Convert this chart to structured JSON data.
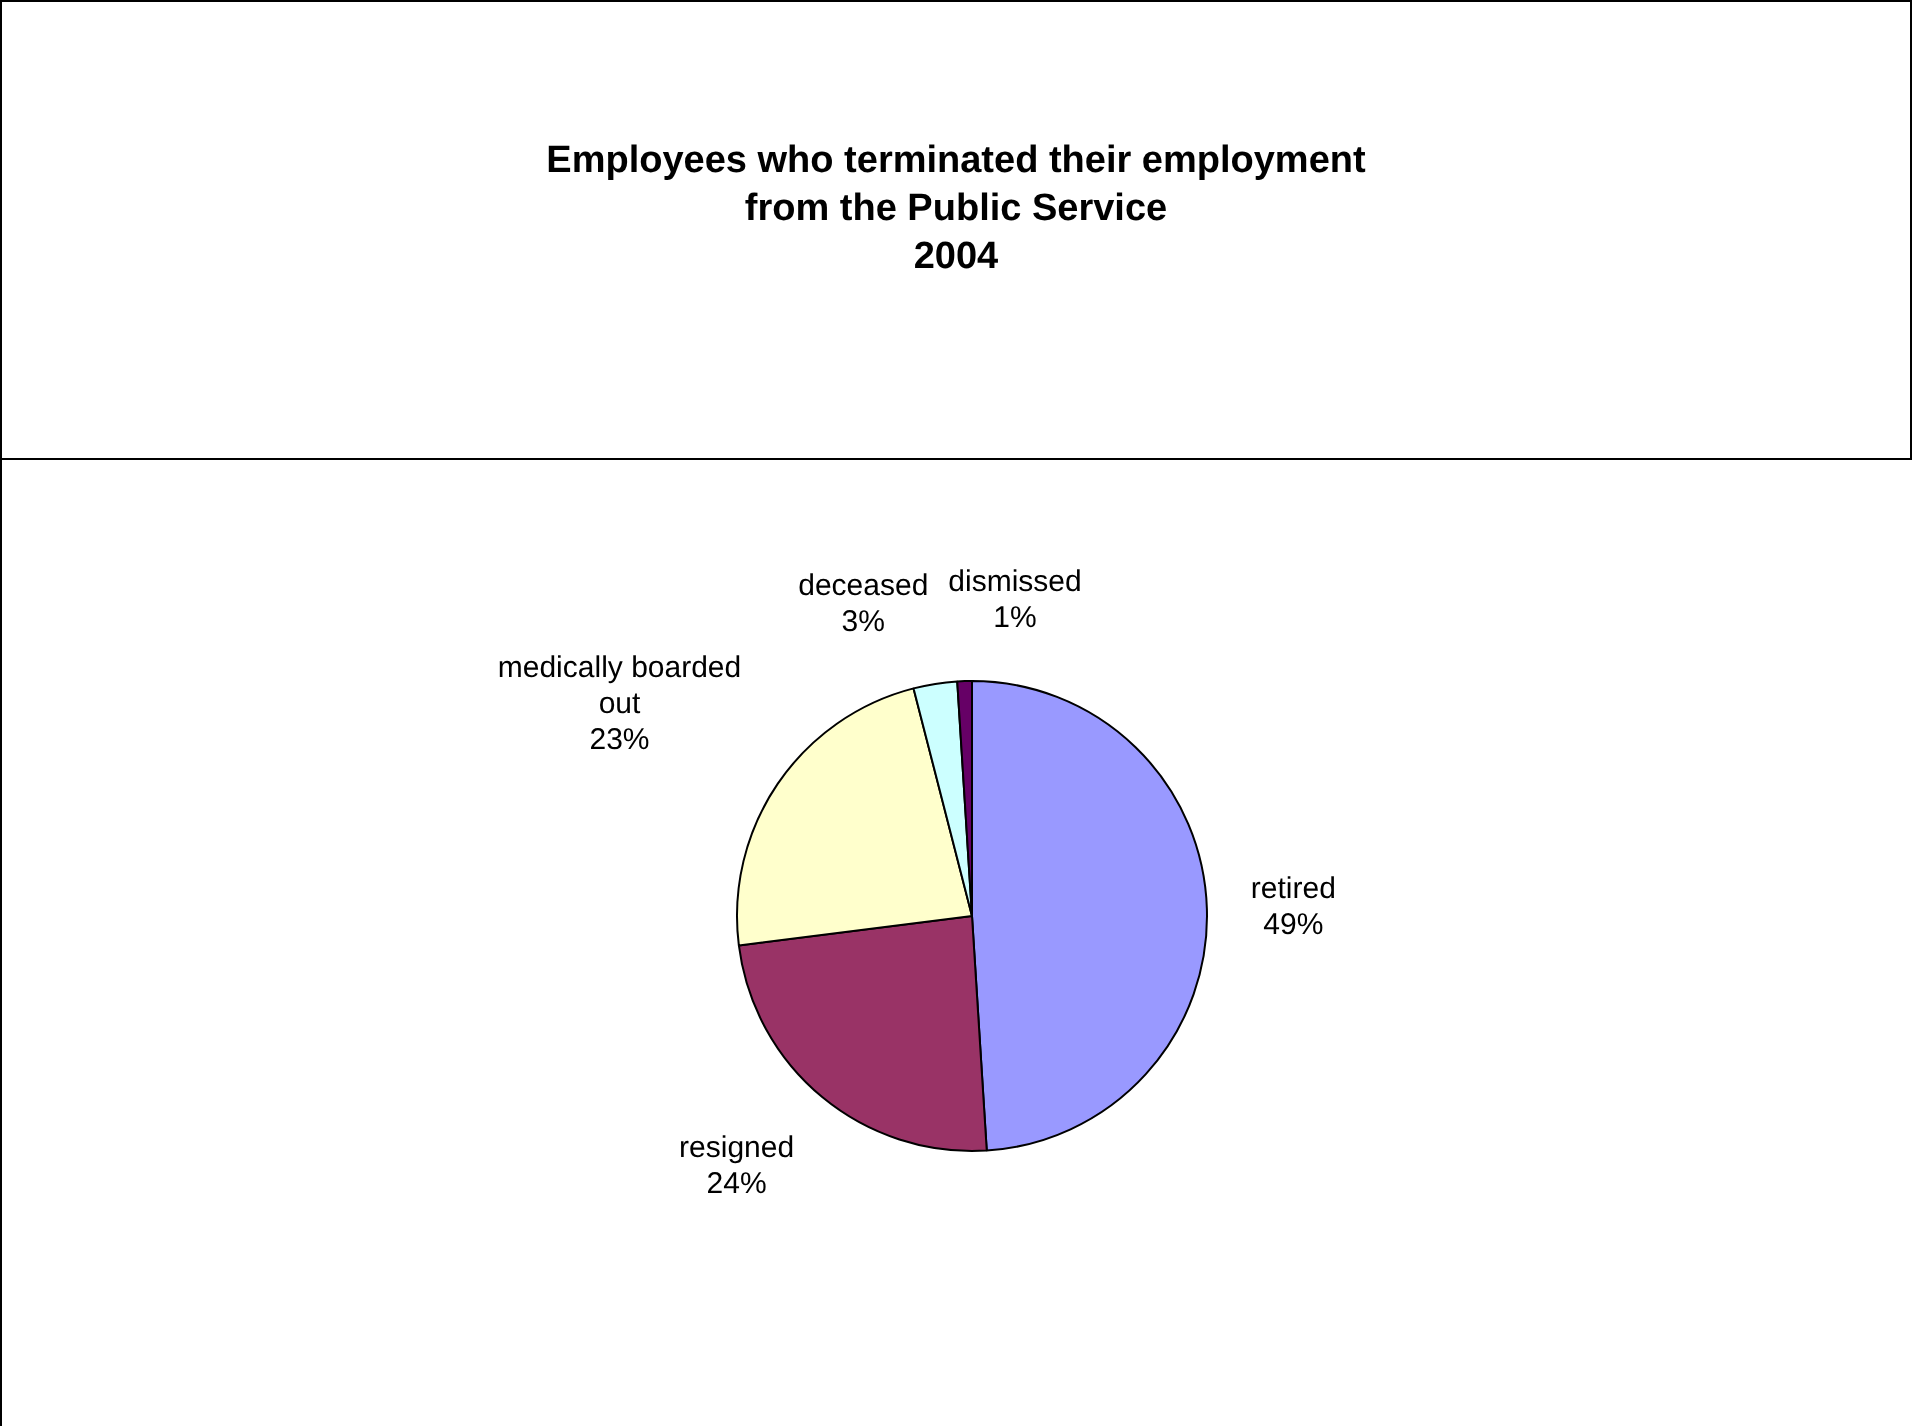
{
  "chart_data": {
    "type": "pie",
    "title": "Employees who terminated their employment\nfrom the Public Service\n2004",
    "categories": [
      "retired",
      "resigned",
      "medically boarded out",
      "deceased",
      "dismissed"
    ],
    "values": [
      49,
      24,
      23,
      3,
      1
    ],
    "colors": [
      "#9999ff",
      "#993366",
      "#ffffcc",
      "#ccffff",
      "#660066"
    ],
    "value_labels": [
      "49%",
      "24%",
      "23%",
      "3%",
      "1%"
    ],
    "legend": false
  }
}
